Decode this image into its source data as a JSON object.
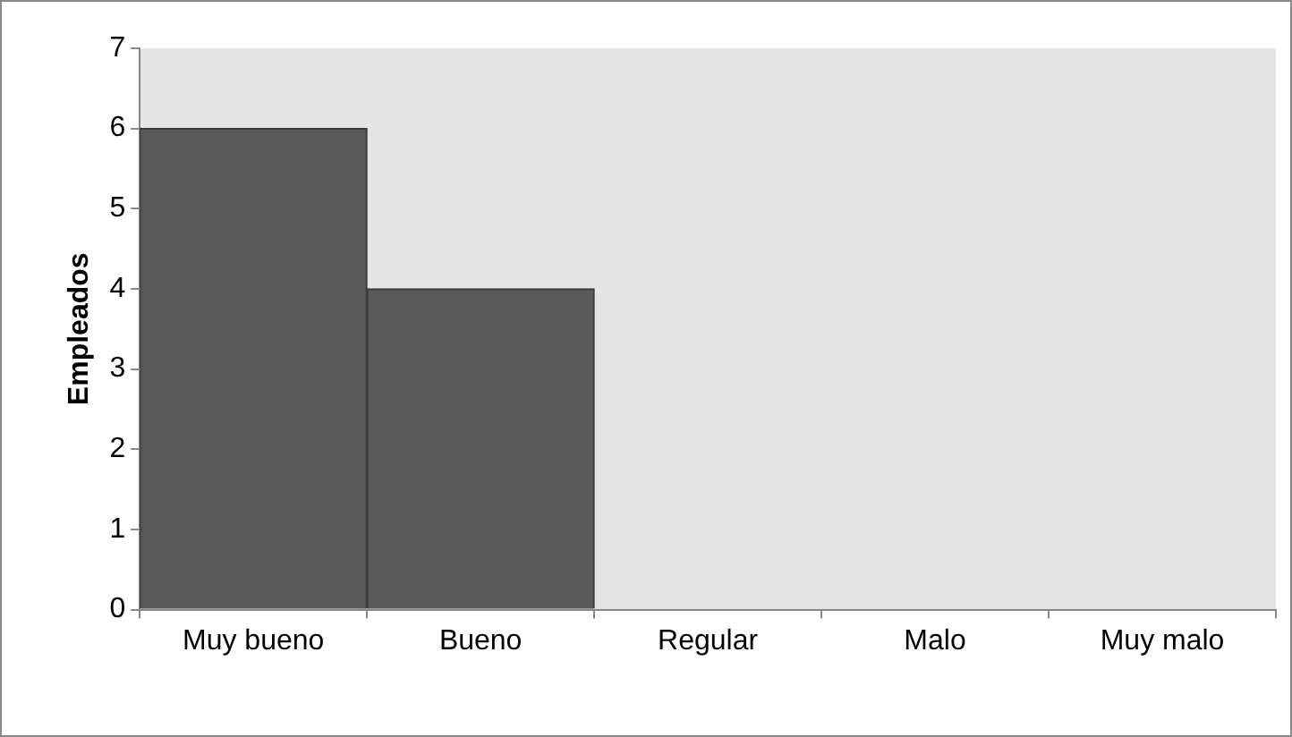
{
  "chart_data": {
    "type": "bar",
    "ylabel": "Empleados",
    "categories": [
      "Muy bueno",
      "Bueno",
      "Regular",
      "Malo",
      "Muy malo"
    ],
    "values": [
      6,
      4,
      0,
      0,
      0
    ],
    "color": "#595959",
    "ylim": [
      0,
      7
    ],
    "yticks": [
      0,
      1,
      2,
      3,
      4,
      5,
      6,
      7
    ],
    "grid": false,
    "legend": false
  }
}
